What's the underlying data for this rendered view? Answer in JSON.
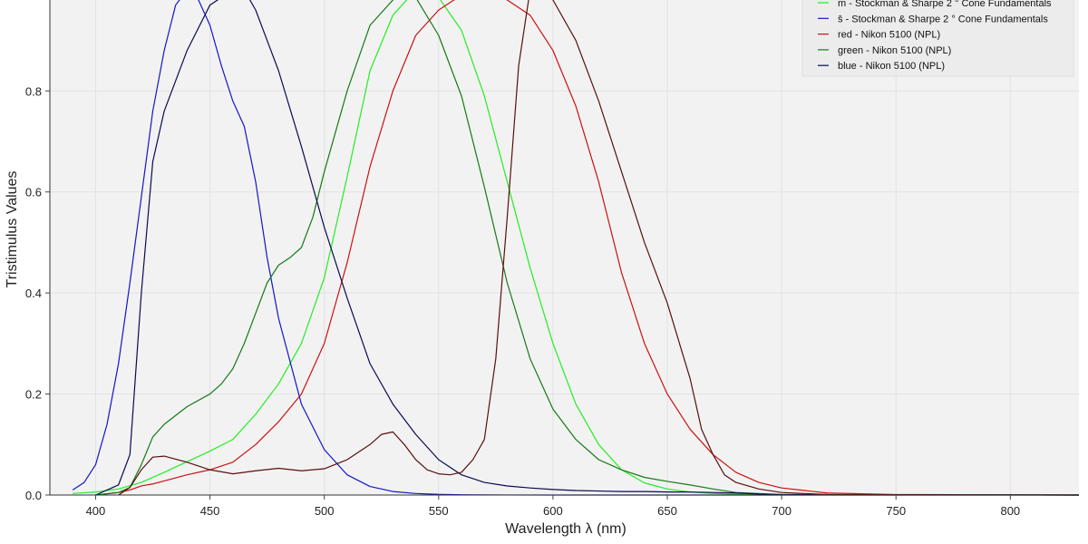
{
  "chart_data": {
    "type": "line",
    "xlabel": "Wavelength λ (nm)",
    "ylabel": "Tristimulus Values",
    "xlim": [
      380,
      830
    ],
    "ylim": [
      0,
      1.0
    ],
    "x_ticks": [
      400,
      450,
      500,
      550,
      600,
      650,
      700,
      750,
      800
    ],
    "y_ticks": [
      0.0,
      0.2,
      0.4,
      0.6,
      0.8
    ],
    "grid": true,
    "legend_position": "top-right",
    "series": [
      {
        "name": "m̄ - Stockman & Sharpe 2 ° Cone Fundamentals",
        "color": "#22ee22",
        "x": [
          390,
          400,
          410,
          420,
          430,
          440,
          450,
          460,
          470,
          480,
          490,
          500,
          510,
          520,
          530,
          540,
          550,
          560,
          570,
          580,
          590,
          600,
          610,
          620,
          630,
          640,
          650,
          660,
          670,
          680,
          690,
          700,
          720,
          750,
          830
        ],
        "y": [
          0.003,
          0.006,
          0.012,
          0.025,
          0.045,
          0.066,
          0.087,
          0.11,
          0.16,
          0.22,
          0.3,
          0.43,
          0.63,
          0.84,
          0.95,
          1.0,
          0.985,
          0.92,
          0.79,
          0.62,
          0.45,
          0.3,
          0.18,
          0.1,
          0.05,
          0.024,
          0.012,
          0.006,
          0.003,
          0.0015,
          0.0008,
          0.0004,
          0.0001,
          0.0,
          0.0
        ]
      },
      {
        "name": "s̄ - Stockman & Sharpe 2 ° Cone Fundamentals",
        "color": "#1515c8",
        "x": [
          390,
          395,
          400,
          405,
          410,
          415,
          420,
          425,
          430,
          435,
          440,
          445,
          450,
          455,
          460,
          465,
          470,
          475,
          480,
          490,
          500,
          510,
          520,
          530,
          540,
          550,
          560,
          570,
          580,
          600,
          830
        ],
        "y": [
          0.01,
          0.025,
          0.06,
          0.14,
          0.26,
          0.42,
          0.59,
          0.76,
          0.88,
          0.97,
          1.0,
          0.98,
          0.93,
          0.85,
          0.78,
          0.73,
          0.62,
          0.47,
          0.35,
          0.18,
          0.09,
          0.04,
          0.017,
          0.007,
          0.003,
          0.0013,
          0.0006,
          0.0003,
          0.0001,
          0.0,
          0.0
        ]
      },
      {
        "name": "red - Nikon 5100 (NPL)",
        "color": "#cc1111",
        "x": [
          400,
          410,
          415,
          420,
          425,
          430,
          440,
          450,
          460,
          470,
          480,
          490,
          500,
          510,
          520,
          530,
          540,
          550,
          560,
          570,
          580,
          590,
          600,
          610,
          620,
          630,
          640,
          650,
          660,
          670,
          680,
          690,
          700,
          720,
          750,
          830
        ],
        "y": [
          0.0,
          0.005,
          0.01,
          0.018,
          0.022,
          0.028,
          0.04,
          0.05,
          0.065,
          0.1,
          0.145,
          0.2,
          0.3,
          0.46,
          0.65,
          0.8,
          0.91,
          0.96,
          0.99,
          1.01,
          0.98,
          0.95,
          0.88,
          0.77,
          0.62,
          0.44,
          0.3,
          0.2,
          0.13,
          0.08,
          0.045,
          0.025,
          0.014,
          0.004,
          0.001,
          0.0
        ]
      },
      {
        "name": "green - Nikon 5100 (NPL)",
        "color": "#157a15",
        "x": [
          400,
          410,
          415,
          420,
          425,
          430,
          440,
          450,
          455,
          460,
          465,
          470,
          475,
          480,
          485,
          490,
          495,
          500,
          510,
          520,
          530,
          535,
          540,
          550,
          560,
          570,
          580,
          590,
          600,
          610,
          620,
          630,
          640,
          650,
          660,
          670,
          680,
          700,
          830
        ],
        "y": [
          0.0,
          0.005,
          0.015,
          0.06,
          0.115,
          0.14,
          0.175,
          0.2,
          0.22,
          0.25,
          0.3,
          0.36,
          0.42,
          0.455,
          0.47,
          0.49,
          0.55,
          0.64,
          0.8,
          0.93,
          0.98,
          1.0,
          0.985,
          0.91,
          0.79,
          0.61,
          0.42,
          0.27,
          0.17,
          0.11,
          0.07,
          0.05,
          0.035,
          0.027,
          0.02,
          0.012,
          0.005,
          0.001,
          0.0
        ]
      },
      {
        "name": "blue - Nikon 5100 (NPL)",
        "color": "#0a0a55",
        "x": [
          400,
          410,
          415,
          420,
          425,
          430,
          440,
          450,
          460,
          465,
          470,
          475,
          480,
          490,
          500,
          510,
          520,
          530,
          540,
          550,
          560,
          570,
          580,
          590,
          600,
          610,
          620,
          630,
          640,
          650,
          660,
          670,
          680,
          690,
          700,
          830
        ],
        "y": [
          0.0,
          0.02,
          0.08,
          0.4,
          0.66,
          0.76,
          0.88,
          0.97,
          1.0,
          1.0,
          0.96,
          0.9,
          0.84,
          0.69,
          0.53,
          0.39,
          0.26,
          0.18,
          0.12,
          0.07,
          0.04,
          0.025,
          0.018,
          0.014,
          0.011,
          0.009,
          0.008,
          0.007,
          0.007,
          0.006,
          0.006,
          0.005,
          0.004,
          0.002,
          0.001,
          0.0
        ]
      },
      {
        "name": "",
        "color": "#5a0f0f",
        "x": [
          410,
          415,
          420,
          425,
          430,
          440,
          450,
          460,
          470,
          480,
          490,
          500,
          510,
          520,
          525,
          530,
          535,
          540,
          545,
          550,
          555,
          560,
          565,
          570,
          575,
          580,
          585,
          590,
          595,
          600,
          610,
          620,
          630,
          640,
          650,
          660,
          665,
          670,
          675,
          680,
          690,
          700,
          720,
          830
        ],
        "y": [
          0.0,
          0.015,
          0.05,
          0.075,
          0.077,
          0.065,
          0.05,
          0.042,
          0.048,
          0.053,
          0.048,
          0.052,
          0.07,
          0.1,
          0.12,
          0.125,
          0.1,
          0.07,
          0.05,
          0.042,
          0.04,
          0.045,
          0.07,
          0.11,
          0.27,
          0.55,
          0.85,
          1.0,
          1.0,
          0.98,
          0.9,
          0.78,
          0.64,
          0.5,
          0.38,
          0.23,
          0.13,
          0.08,
          0.04,
          0.025,
          0.012,
          0.005,
          0.001,
          0.0
        ]
      }
    ]
  }
}
